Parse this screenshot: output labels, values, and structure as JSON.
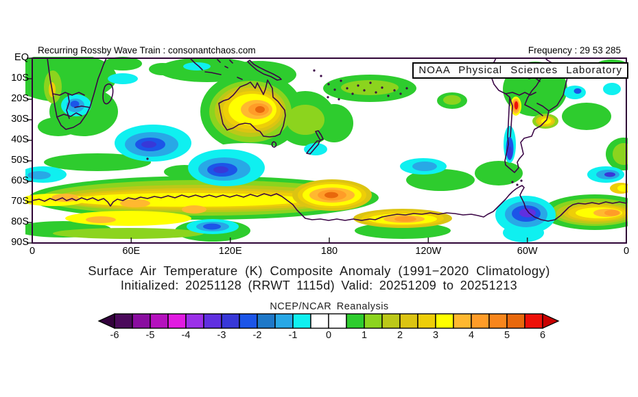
{
  "header": {
    "left": "Recurring Rossby Wave Train : consonantchaos.com",
    "right": "Frequency : 29 53 285"
  },
  "map": {
    "watermark": "NOAA Physical Sciences Laboratory",
    "frame_color": "#2E0335",
    "coast_color": "#3A0545",
    "background": "#FFFFFF"
  },
  "axes": {
    "lat_labels": [
      "EQ",
      "10S",
      "20S",
      "30S",
      "40S",
      "50S",
      "60S",
      "70S",
      "80S",
      "90S"
    ],
    "lon_labels": [
      "0",
      "60E",
      "120E",
      "180",
      "120W",
      "60W",
      "0"
    ],
    "lon_range_deg": [
      0,
      360
    ],
    "lat_range": [
      "EQ",
      "90S"
    ]
  },
  "title": {
    "line1": "Surface Air Temperature (K) Composite Anomaly (1991−2020 Climatology)",
    "line2": "Initialized: 20251128 (RRWT 1115d) Valid: 20251209 to 20251213"
  },
  "colorbar": {
    "label": "NCEP/NCAR Reanalysis",
    "tick_labels": [
      "-6",
      "-5",
      "-4",
      "-3",
      "-2",
      "-1",
      "0",
      "1",
      "2",
      "3",
      "4",
      "5",
      "6"
    ],
    "units": "K",
    "segment_min": -6,
    "segment_max": 6,
    "segment_step": 0.5,
    "colors": [
      "#4B0A5B",
      "#8A0DA0",
      "#B511BE",
      "#E11BE1",
      "#9B30E8",
      "#6030E0",
      "#3838D8",
      "#1C55E8",
      "#1E78C8",
      "#28A8E6",
      "#0FF0F0",
      "#FFFFFF",
      "#FFFFFF",
      "#2ECC2E",
      "#8CD41E",
      "#BCC818",
      "#DCC412",
      "#EECE08",
      "#FFFF00",
      "#FFB830",
      "#FF9C28",
      "#F8861C",
      "#E8680C",
      "#EE1008"
    ],
    "left_arrow_color": "#33023C",
    "right_arrow_color": "#C80000"
  },
  "chart_data": {
    "type": "filled_contour_map",
    "variable": "Surface Air Temperature Composite Anomaly",
    "units": "K",
    "climatology": "1991-2020",
    "init_date": "20251128",
    "valid_period": [
      "20251209",
      "20251213"
    ],
    "source": "NCEP/NCAR Reanalysis",
    "domain": {
      "lat": [
        "EQ",
        "90S"
      ],
      "lon_deg_east": [
        0,
        360
      ]
    },
    "levels": [
      -6,
      -5.5,
      -5,
      -4.5,
      -4,
      -3.5,
      -3,
      -2.5,
      -2,
      -1.5,
      -1,
      -0.5,
      0,
      0.5,
      1,
      1.5,
      2,
      2.5,
      3,
      3.5,
      4,
      4.5,
      5,
      5.5,
      6
    ],
    "notable_anomalies": [
      {
        "region": "central Australia",
        "sign": "warm",
        "peak_K": 4.5,
        "lon": "135E",
        "lat": "25S"
      },
      {
        "region": "Ross Sea / dateline Antarctic coast",
        "sign": "warm",
        "peak_K": 5,
        "lon": "180",
        "lat": "67S"
      },
      {
        "region": "East Antarctic coastal band",
        "sign": "warm",
        "peak_K": 3.5,
        "lon": "0-150E",
        "lat": "62-80S"
      },
      {
        "region": "Marie Byrd Land band",
        "sign": "warm",
        "peak_K": 4,
        "lon": "140W",
        "lat": "78S"
      },
      {
        "region": "Dronning Maud Land band",
        "sign": "warm",
        "peak_K": 4,
        "lon": "20W-0",
        "lat": "70-78S"
      },
      {
        "region": "Andes / northern Chile-Argentina",
        "sign": "warm",
        "peak_K": 6,
        "lon": "67W",
        "lat": "23S"
      },
      {
        "region": "subtropical South Atlantic spot",
        "sign": "warm",
        "peak_K": 3,
        "lon": "50W",
        "lat": "31S"
      },
      {
        "region": "south Indian Ocean",
        "sign": "cold",
        "peak_K": -3.5,
        "lon": "75E",
        "lat": "42S"
      },
      {
        "region": "ocean south of Australia",
        "sign": "cold",
        "peak_K": -3.5,
        "lon": "117E",
        "lat": "53S"
      },
      {
        "region": "Weddell Sea / Antarctic Peninsula",
        "sign": "cold",
        "peak_K": -4.5,
        "lon": "60W",
        "lat": "76S"
      },
      {
        "region": "Patagonia coast",
        "sign": "cold",
        "peak_K": -3.5,
        "lon": "71W",
        "lat": "42S"
      },
      {
        "region": "southern Africa interior",
        "sign": "cold",
        "peak_K": -2.5,
        "lon": "27E",
        "lat": "23S"
      },
      {
        "region": "tropical South Atlantic",
        "sign": "cold",
        "peak_K": -2,
        "lon": "31W",
        "lat": "16S"
      },
      {
        "region": "South Atlantic 55-60S",
        "sign": "cold",
        "peak_K": -3,
        "lon": "13W",
        "lat": "57S"
      },
      {
        "region": "widespread mid/low latitude background",
        "sign": "warm",
        "peak_K": 1.5,
        "lon": "various",
        "lat": "0-60S"
      }
    ]
  }
}
